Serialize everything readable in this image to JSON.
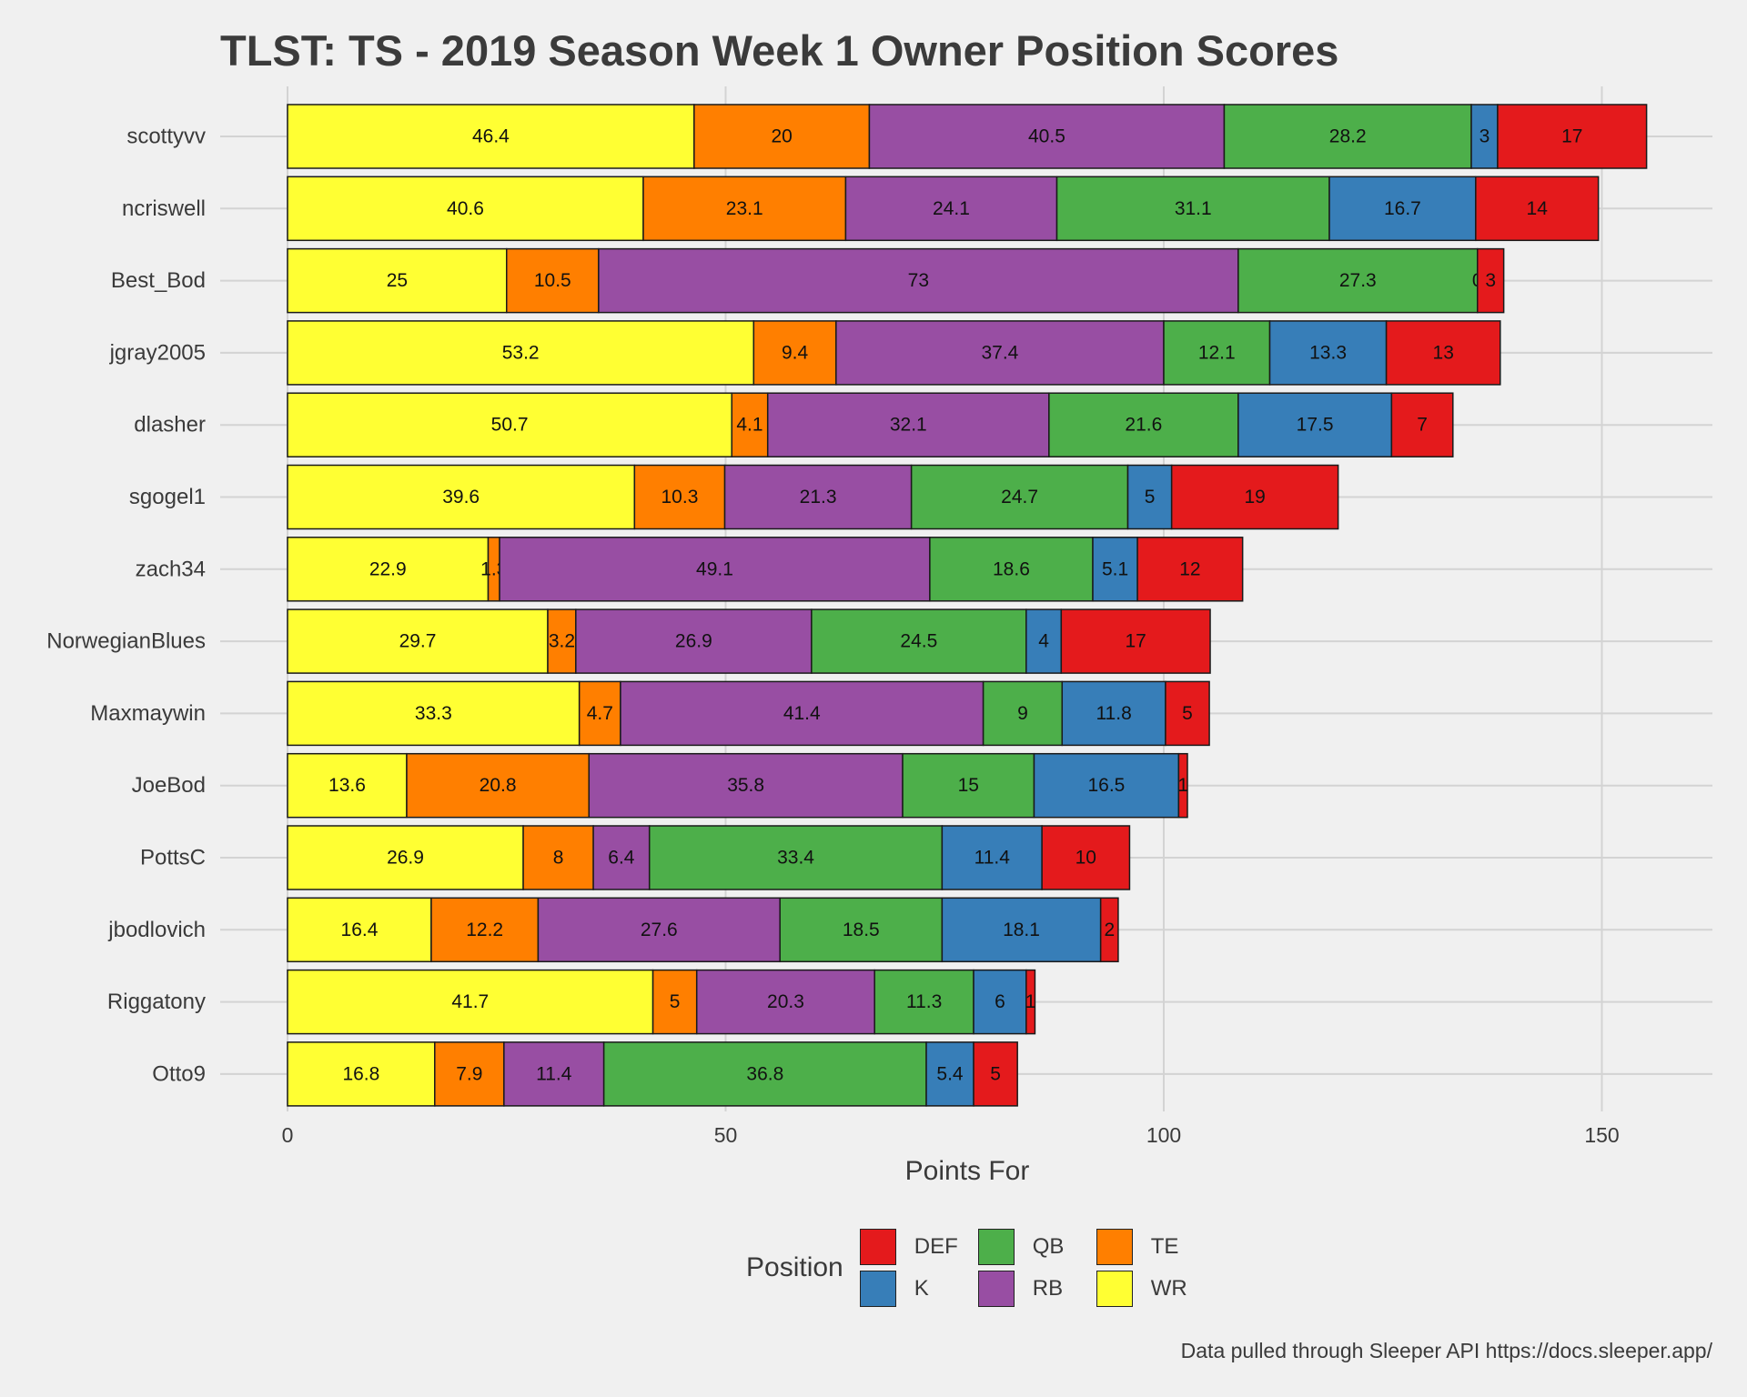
{
  "chart_data": {
    "type": "bar",
    "orientation": "horizontal",
    "stacked": true,
    "title": "TLST: TS - 2019 Season Week 1 Owner Position Scores",
    "xlabel": "Points For",
    "ylabel": "",
    "xlim": [
      0,
      162
    ],
    "xticks": [
      0,
      50,
      100,
      150
    ],
    "grid": true,
    "legend_position": "bottom",
    "legend_title": "Position",
    "caption": "Data pulled through Sleeper API https://docs.sleeper.app/",
    "categories": [
      "scottyvv",
      "ncriswell",
      "Best_Bod",
      "jgray2005",
      "dlasher",
      "sgogel1",
      "zach34",
      "NorwegianBlues",
      "Maxmaywin",
      "JoeBod",
      "PottsC",
      "jbodlovich",
      "Riggatony",
      "Otto9"
    ],
    "stack_order": [
      "WR",
      "TE",
      "RB",
      "QB",
      "K",
      "DEF"
    ],
    "legend_order": [
      "DEF",
      "QB",
      "TE",
      "K",
      "RB",
      "WR"
    ],
    "colors": {
      "DEF": "#e41a1c",
      "K": "#377eb8",
      "QB": "#4daf4a",
      "RB": "#984ea3",
      "TE": "#ff7f00",
      "WR": "#ffff33"
    },
    "series": [
      {
        "name": "WR",
        "values": [
          46.4,
          40.6,
          25,
          53.2,
          50.7,
          39.6,
          22.9,
          29.7,
          33.3,
          13.6,
          26.9,
          16.4,
          41.7,
          16.8
        ]
      },
      {
        "name": "TE",
        "values": [
          20,
          23.1,
          10.5,
          9.4,
          4.1,
          10.3,
          1.3,
          3.2,
          4.7,
          20.8,
          8,
          12.2,
          5,
          7.9
        ]
      },
      {
        "name": "RB",
        "values": [
          40.5,
          24.1,
          73,
          37.4,
          32.1,
          21.3,
          49.1,
          26.9,
          41.4,
          35.8,
          6.4,
          27.6,
          20.3,
          11.4
        ]
      },
      {
        "name": "QB",
        "values": [
          28.2,
          31.1,
          27.3,
          12.1,
          21.6,
          24.7,
          18.6,
          24.5,
          9,
          15,
          33.4,
          18.5,
          11.3,
          36.8
        ]
      },
      {
        "name": "K",
        "values": [
          3,
          16.7,
          0,
          13.3,
          17.5,
          5,
          5.1,
          4,
          11.8,
          16.5,
          11.4,
          18.1,
          6,
          5.4
        ]
      },
      {
        "name": "DEF",
        "values": [
          17,
          14,
          3,
          13,
          7,
          19,
          12,
          17,
          5,
          1,
          10,
          2,
          1,
          5
        ]
      }
    ]
  }
}
